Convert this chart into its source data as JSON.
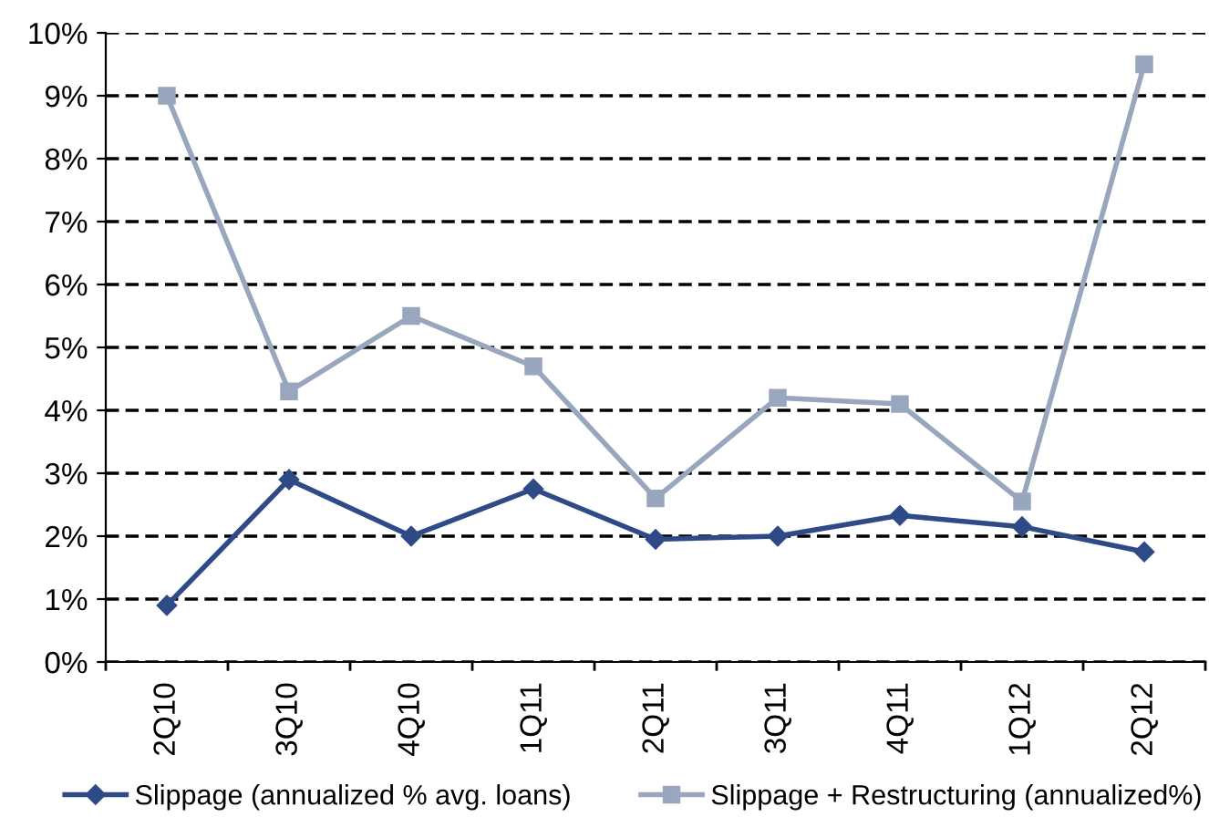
{
  "chart_data": {
    "type": "line",
    "categories": [
      "2Q10",
      "3Q10",
      "4Q10",
      "1Q11",
      "2Q11",
      "3Q11",
      "4Q11",
      "1Q12",
      "2Q12"
    ],
    "series": [
      {
        "name": "Slippage (annualized % avg. loans)",
        "color": "#2e4a87",
        "marker": "diamond",
        "values": [
          0.9,
          2.9,
          2.0,
          2.75,
          1.95,
          2.0,
          2.33,
          2.15,
          1.75
        ]
      },
      {
        "name": "Slippage + Restructuring (annualized%)",
        "color": "#98a6be",
        "marker": "square",
        "values": [
          9.0,
          4.3,
          5.5,
          4.7,
          2.6,
          4.2,
          4.1,
          2.55,
          9.5
        ]
      }
    ],
    "ylim": [
      0,
      10
    ],
    "yticks": [
      {
        "value": 0,
        "label": "0%"
      },
      {
        "value": 1,
        "label": "1%"
      },
      {
        "value": 2,
        "label": "2%"
      },
      {
        "value": 3,
        "label": "3%"
      },
      {
        "value": 4,
        "label": "4%"
      },
      {
        "value": 5,
        "label": "5%"
      },
      {
        "value": 6,
        "label": "6%"
      },
      {
        "value": 7,
        "label": "7%"
      },
      {
        "value": 8,
        "label": "8%"
      },
      {
        "value": 9,
        "label": "9%"
      },
      {
        "value": 10,
        "label": "10%"
      }
    ],
    "grid": "y",
    "legend": "bottom",
    "line_style": "solid"
  }
}
